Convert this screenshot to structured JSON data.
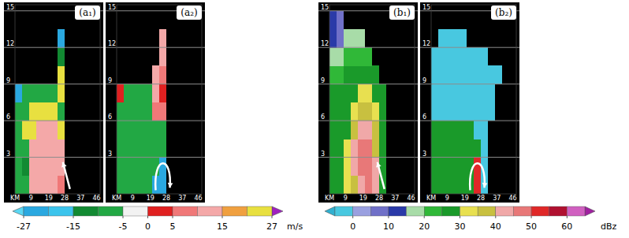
{
  "chart_data": [
    {
      "type": "heatmap",
      "xlim": [
        0,
        48
      ],
      "ylim": [
        0,
        15.5
      ],
      "xticks": [
        {
          "value": 0,
          "label": "KM"
        },
        9,
        19,
        28,
        37,
        46
      ],
      "yticks": [
        3,
        6,
        9,
        12,
        15
      ],
      "grid": true,
      "x_edges": [
        0,
        4,
        8,
        12,
        16,
        20,
        24,
        28,
        32,
        36,
        40,
        44,
        48
      ],
      "y_edges": [
        0,
        1.5,
        3,
        4.5,
        6,
        7.5,
        9,
        10.5,
        12,
        13.5,
        15
      ],
      "colorbar": {
        "bounds": [
          -27,
          -20,
          -15,
          -10,
          -5,
          0,
          5,
          10,
          15,
          20,
          27
        ],
        "colors": [
          "#2aa8e0",
          "#3cc4ec",
          "#128a32",
          "#22a844",
          "#f2f2f2",
          "#e02020",
          "#f07878",
          "#f4a8a8",
          "#f0a040",
          "#e8e040"
        ],
        "under_color": "#5ad8f4",
        "over_color": "#a020c0",
        "ticks": [
          -27,
          -15,
          -5,
          0,
          5,
          15,
          27
        ],
        "unit": "m/s"
      },
      "panels": [
        {
          "title": "(a₁)",
          "cells": [
            [
              -10,
              -10,
              12,
              12,
              12,
              12,
              8,
              null,
              null,
              null,
              null,
              null
            ],
            [
              -10,
              -12,
              12,
              12,
              12,
              12,
              12,
              null,
              null,
              null,
              null,
              null
            ],
            [
              -10,
              -10,
              12,
              12,
              12,
              12,
              12,
              null,
              null,
              null,
              null,
              null
            ],
            [
              -10,
              22,
              22,
              12,
              12,
              12,
              22,
              null,
              null,
              null,
              null,
              null
            ],
            [
              -10,
              -10,
              22,
              22,
              22,
              22,
              -10,
              null,
              null,
              null,
              null,
              null
            ],
            [
              -22,
              -10,
              -10,
              -10,
              -10,
              -10,
              22,
              null,
              null,
              null,
              null,
              null
            ],
            [
              null,
              null,
              null,
              null,
              null,
              null,
              22,
              null,
              null,
              null,
              null,
              null
            ],
            [
              null,
              null,
              null,
              null,
              null,
              null,
              -12,
              null,
              null,
              null,
              null,
              null
            ],
            [
              null,
              null,
              null,
              null,
              null,
              null,
              -22,
              null,
              null,
              null,
              null,
              null
            ],
            [
              null,
              null,
              null,
              null,
              null,
              null,
              null,
              null,
              null,
              null,
              null,
              null
            ]
          ]
        },
        {
          "title": "(a₂)",
          "cells": [
            [
              -10,
              -10,
              -10,
              -10,
              -10,
              -22,
              -22,
              null,
              null,
              null,
              null,
              null
            ],
            [
              -10,
              -10,
              -10,
              -10,
              -10,
              -10,
              -22,
              null,
              null,
              null,
              null,
              null
            ],
            [
              -10,
              -10,
              -10,
              -10,
              -10,
              -10,
              -10,
              null,
              null,
              null,
              null,
              null
            ],
            [
              -10,
              -10,
              -10,
              -10,
              -10,
              -10,
              -10,
              null,
              null,
              null,
              null,
              null
            ],
            [
              -10,
              -10,
              -10,
              -10,
              -10,
              8,
              8,
              null,
              null,
              null,
              null,
              null
            ],
            [
              2,
              -10,
              -10,
              -10,
              -10,
              12,
              2,
              null,
              null,
              null,
              null,
              null
            ],
            [
              null,
              null,
              null,
              null,
              null,
              12,
              8,
              null,
              null,
              null,
              null,
              null
            ],
            [
              null,
              null,
              null,
              null,
              null,
              null,
              12,
              null,
              null,
              null,
              null,
              null
            ],
            [
              null,
              null,
              null,
              null,
              null,
              null,
              12,
              null,
              null,
              null,
              null,
              null
            ],
            [
              null,
              null,
              null,
              null,
              null,
              null,
              null,
              null,
              null,
              null,
              null,
              null
            ]
          ]
        }
      ]
    },
    {
      "type": "heatmap",
      "xlim": [
        0,
        48
      ],
      "ylim": [
        0,
        15.5
      ],
      "xticks": [
        {
          "value": 0,
          "label": "KM"
        },
        9,
        19,
        28,
        37,
        46
      ],
      "yticks": [
        3,
        6,
        9,
        12,
        15
      ],
      "grid": true,
      "x_edges": [
        0,
        4,
        8,
        12,
        16,
        20,
        24,
        28,
        32,
        36,
        40,
        44,
        48
      ],
      "y_edges": [
        0,
        1.5,
        3,
        4.5,
        6,
        7.5,
        9,
        10.5,
        12,
        13.5,
        15
      ],
      "colorbar": {
        "bounds": [
          -5,
          0,
          5,
          10,
          15,
          20,
          25,
          30,
          35,
          40,
          45,
          50,
          55,
          60,
          65
        ],
        "colors": [
          "#48c8e0",
          "#9aa0e0",
          "#7070c8",
          "#2a3aa8",
          "#a8dca8",
          "#30b838",
          "#1a9a2a",
          "#e8e050",
          "#c8c040",
          "#f0a8a8",
          "#e87878",
          "#e02828",
          "#b01030",
          "#d060c0"
        ],
        "under_color": "#30b0d0",
        "over_color": "#a020a0",
        "ticks": [
          0,
          10,
          20,
          30,
          40,
          50,
          60
        ],
        "unit": "dBz"
      },
      "panels": [
        {
          "title": "(b₁)",
          "cells": [
            [
              28,
              28,
              33,
              38,
              42,
              47,
              42,
              28,
              null,
              null,
              null,
              null
            ],
            [
              28,
              28,
              33,
              42,
              47,
              47,
              42,
              28,
              null,
              null,
              null,
              null
            ],
            [
              28,
              28,
              33,
              42,
              47,
              47,
              38,
              28,
              null,
              null,
              null,
              null
            ],
            [
              28,
              28,
              28,
              38,
              42,
              42,
              38,
              28,
              null,
              null,
              null,
              null
            ],
            [
              28,
              28,
              28,
              33,
              38,
              38,
              33,
              28,
              null,
              null,
              null,
              null
            ],
            [
              28,
              28,
              28,
              28,
              33,
              33,
              28,
              28,
              null,
              null,
              null,
              null
            ],
            [
              23,
              23,
              28,
              28,
              28,
              28,
              28,
              null,
              null,
              null,
              null,
              null
            ],
            [
              17,
              17,
              23,
              23,
              23,
              23,
              null,
              null,
              null,
              null,
              null,
              null
            ],
            [
              12,
              7,
              17,
              17,
              17,
              null,
              null,
              null,
              null,
              null,
              null,
              null
            ],
            [
              12,
              7,
              null,
              null,
              null,
              null,
              null,
              null,
              null,
              null,
              null,
              null
            ]
          ]
        },
        {
          "title": "(b₂)",
          "cells": [
            [
              28,
              28,
              28,
              28,
              28,
              28,
              52,
              -2,
              null,
              null,
              null,
              null
            ],
            [
              28,
              28,
              28,
              28,
              28,
              28,
              52,
              -2,
              null,
              null,
              null,
              null
            ],
            [
              28,
              28,
              28,
              28,
              28,
              28,
              28,
              -2,
              null,
              null,
              null,
              null
            ],
            [
              28,
              28,
              28,
              28,
              28,
              28,
              -2,
              -2,
              null,
              null,
              null,
              null
            ],
            [
              -2,
              -2,
              -2,
              -2,
              -2,
              -2,
              -2,
              -2,
              -2,
              null,
              null,
              null
            ],
            [
              -2,
              -2,
              -2,
              -2,
              -2,
              -2,
              -2,
              -2,
              -2,
              null,
              null,
              null
            ],
            [
              -2,
              -2,
              -2,
              -2,
              -2,
              -2,
              -2,
              -2,
              -2,
              -2,
              null,
              null
            ],
            [
              -2,
              -2,
              -2,
              -2,
              -2,
              -2,
              -2,
              -2,
              null,
              null,
              null,
              null
            ],
            [
              null,
              -2,
              -2,
              -2,
              -2,
              null,
              null,
              null,
              null,
              null,
              null,
              null
            ],
            [
              null,
              null,
              null,
              null,
              null,
              null,
              null,
              null,
              null,
              null,
              null,
              null
            ]
          ]
        }
      ]
    }
  ]
}
